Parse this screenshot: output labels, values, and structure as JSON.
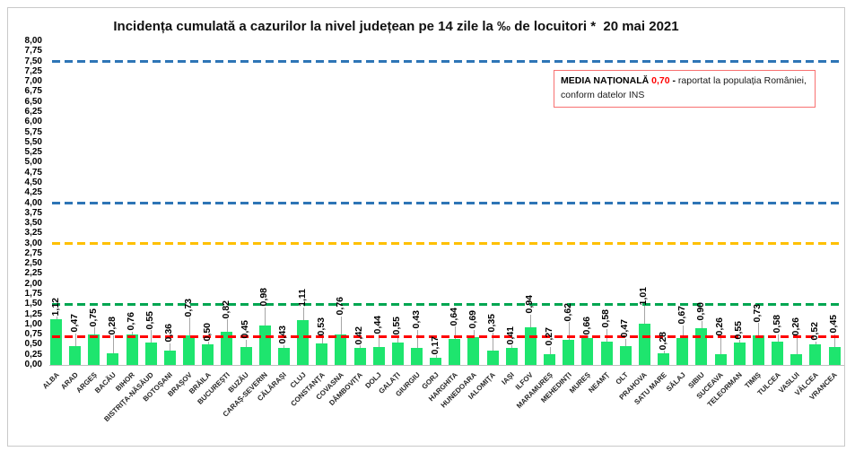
{
  "chart_data": {
    "type": "bar",
    "title": "Incidența cumulată a cazurilor la nivel județean pe 14 zile la ‰ de locuitori *  20 mai 2021",
    "categories": [
      "ALBA",
      "ARAD",
      "ARGEȘ",
      "BACĂU",
      "BIHOR",
      "BISTRIȚA-NĂSĂUD",
      "BOTOȘANI",
      "BRAȘOV",
      "BRĂILA",
      "BUCUREȘTI",
      "BUZĂU",
      "CARAȘ-SEVERIN",
      "CĂLĂRAȘI",
      "CLUJ",
      "CONSTANȚA",
      "COVASNA",
      "DÂMBOVIȚA",
      "DOLJ",
      "GALAȚI",
      "GIURGIU",
      "GORJ",
      "HARGHITA",
      "HUNEDOARA",
      "IALOMIȚA",
      "IAȘI",
      "ILFOV",
      "MARAMUREȘ",
      "MEHEDINȚI",
      "MUREȘ",
      "NEAMȚ",
      "OLT",
      "PRAHOVA",
      "SATU MARE",
      "SĂLAJ",
      "SIBIU",
      "SUCEAVA",
      "TELEORMAN",
      "TIMIȘ",
      "TULCEA",
      "VASLUI",
      "VÂLCEA",
      "VRANCEA"
    ],
    "values": [
      1.12,
      0.47,
      0.75,
      0.28,
      0.76,
      0.55,
      0.36,
      0.73,
      0.5,
      0.82,
      0.45,
      0.98,
      0.43,
      1.11,
      0.53,
      0.76,
      0.42,
      0.44,
      0.55,
      0.43,
      0.17,
      0.64,
      0.69,
      0.35,
      0.41,
      0.94,
      0.27,
      0.62,
      0.66,
      0.58,
      0.47,
      1.01,
      0.28,
      0.67,
      0.9,
      0.26,
      0.55,
      0.73,
      0.58,
      0.26,
      0.52,
      0.45
    ],
    "value_labels": [
      "1,12",
      "0,47",
      "0,75",
      "0,28",
      "0,76",
      "0,55",
      "0,36",
      "0,73",
      "0,50",
      "0,82",
      "0,45",
      "0,98",
      "0,43",
      "1,11",
      "0,53",
      "0,76",
      "0,42",
      "0,44",
      "0,55",
      "0,43",
      "0,17",
      "0,64",
      "0,69",
      "0,35",
      "0,41",
      "0,94",
      "0,27",
      "0,62",
      "0,66",
      "0,58",
      "0,47",
      "1,01",
      "0,28",
      "0,67",
      "0,90",
      "0,26",
      "0,55",
      "0,73",
      "0,58",
      "0,26",
      "0,52",
      "0,45"
    ],
    "xlabel": "",
    "ylabel": "",
    "ylim": [
      0,
      8
    ],
    "ytick_step": 0.25,
    "grid": false,
    "legend_position": "none",
    "bar_color": "#1ee56e",
    "leader_color": "#a6a6a6",
    "reference_lines": [
      {
        "name": "threshold-7-50",
        "value": 7.5,
        "color": "#2e75b6",
        "style": "dashed"
      },
      {
        "name": "threshold-4-00",
        "value": 4.0,
        "color": "#2e75b6",
        "style": "dashed"
      },
      {
        "name": "threshold-3-00",
        "value": 3.0,
        "color": "#ffc000",
        "style": "dashed"
      },
      {
        "name": "threshold-1-50",
        "value": 1.5,
        "color": "#00a651",
        "style": "dashed"
      },
      {
        "name": "national-average-0-70",
        "value": 0.7,
        "color": "#ff0000",
        "style": "dashed"
      }
    ],
    "annotation": {
      "label_bold": "MEDIA NAȚIONALĂ",
      "value": "0,70",
      "value_color": "#ff0000",
      "separator": "-",
      "text": "raportat la populația României, conform datelor INS",
      "border_color": "#f87171"
    }
  }
}
